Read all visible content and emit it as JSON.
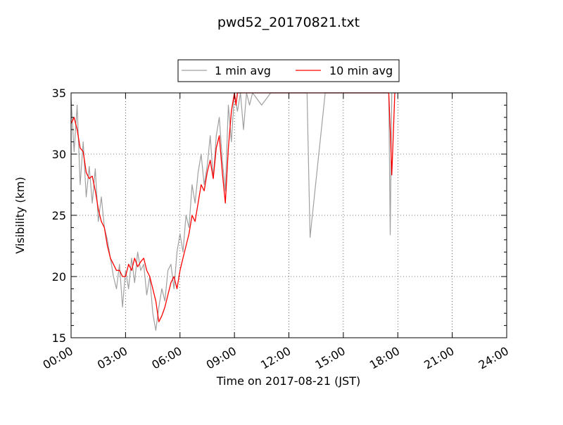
{
  "chart_data": {
    "type": "line",
    "title": "pwd52_20170821.txt",
    "xlabel": "Time on 2017-08-21 (JST)",
    "ylabel": "Visibility (km)",
    "xlim": [
      "00:00",
      "24:00"
    ],
    "ylim": [
      15,
      35
    ],
    "x_ticks": [
      "00:00",
      "03:00",
      "06:00",
      "09:00",
      "12:00",
      "15:00",
      "18:00",
      "21:00",
      "24:00"
    ],
    "y_ticks": [
      15,
      20,
      25,
      30,
      35
    ],
    "grid": true,
    "legend_position": "top-center",
    "series": [
      {
        "name": "1 min avg",
        "color": "#a0a0a0",
        "x": [
          "00:00",
          "00:10",
          "00:20",
          "00:30",
          "00:40",
          "00:50",
          "01:00",
          "01:10",
          "01:20",
          "01:30",
          "01:40",
          "01:50",
          "02:00",
          "02:10",
          "02:20",
          "02:30",
          "02:40",
          "02:50",
          "03:00",
          "03:10",
          "03:20",
          "03:30",
          "03:40",
          "03:50",
          "04:00",
          "04:10",
          "04:20",
          "04:30",
          "04:40",
          "04:50",
          "05:00",
          "05:10",
          "05:20",
          "05:30",
          "05:40",
          "05:50",
          "06:00",
          "06:10",
          "06:20",
          "06:30",
          "06:40",
          "06:50",
          "07:00",
          "07:10",
          "07:20",
          "07:30",
          "07:40",
          "07:50",
          "08:00",
          "08:10",
          "08:20",
          "08:30",
          "08:40",
          "08:50",
          "09:00",
          "09:10",
          "09:20",
          "09:30",
          "09:40",
          "09:50",
          "10:00",
          "10:30",
          "11:00",
          "11:30",
          "12:00",
          "13:00",
          "13:10",
          "14:00",
          "15:00",
          "16:00",
          "17:00",
          "17:30",
          "17:35",
          "17:40",
          "17:50",
          "18:00",
          "21:00",
          "24:00"
        ],
        "values": [
          34.5,
          30.2,
          34.0,
          27.5,
          31.0,
          26.5,
          29.0,
          26.0,
          28.8,
          24.5,
          26.5,
          24.0,
          23.0,
          21.5,
          20.0,
          19.0,
          21.0,
          17.5,
          20.5,
          19.0,
          21.5,
          19.5,
          22.0,
          20.5,
          21.0,
          18.5,
          20.0,
          17.0,
          15.6,
          17.5,
          19.0,
          18.0,
          20.5,
          21.0,
          19.0,
          22.0,
          23.5,
          22.0,
          25.0,
          24.0,
          27.5,
          26.0,
          28.5,
          30.0,
          27.5,
          29.0,
          31.5,
          28.0,
          31.5,
          33.0,
          29.5,
          27.0,
          34.0,
          31.0,
          35,
          33.5,
          35,
          32.0,
          35,
          34.0,
          35,
          34.0,
          35,
          35,
          35,
          35,
          23.2,
          35,
          35,
          35,
          35,
          35,
          23.4,
          35,
          35,
          35,
          35,
          35
        ]
      },
      {
        "name": "10 min avg",
        "color": "#ff0000",
        "x": [
          "00:00",
          "00:10",
          "00:20",
          "00:30",
          "00:40",
          "00:50",
          "01:00",
          "01:10",
          "01:20",
          "01:30",
          "01:40",
          "01:50",
          "02:00",
          "02:10",
          "02:20",
          "02:30",
          "02:40",
          "02:50",
          "03:00",
          "03:10",
          "03:20",
          "03:30",
          "03:40",
          "03:50",
          "04:00",
          "04:10",
          "04:20",
          "04:30",
          "04:40",
          "04:50",
          "05:00",
          "05:10",
          "05:20",
          "05:30",
          "05:40",
          "05:50",
          "06:00",
          "06:10",
          "06:20",
          "06:30",
          "06:40",
          "06:50",
          "07:00",
          "07:10",
          "07:20",
          "07:30",
          "07:40",
          "07:50",
          "08:00",
          "08:10",
          "08:20",
          "08:30",
          "08:40",
          "08:50",
          "09:00",
          "09:05",
          "09:10",
          "09:20",
          "17:30",
          "17:35",
          "17:40",
          "17:45",
          "17:50"
        ],
        "values": [
          32.5,
          33.0,
          32.0,
          30.5,
          30.2,
          28.5,
          28.0,
          28.2,
          27.0,
          25.5,
          24.5,
          24.0,
          22.5,
          21.5,
          21.0,
          20.5,
          20.5,
          20.0,
          20.0,
          21.0,
          20.5,
          21.5,
          20.8,
          21.2,
          21.5,
          20.5,
          20.0,
          19.0,
          18.0,
          16.3,
          16.8,
          17.5,
          18.5,
          19.5,
          20.0,
          19.0,
          20.5,
          21.5,
          22.5,
          23.5,
          25.0,
          24.5,
          26.0,
          27.5,
          27.0,
          28.5,
          29.5,
          28.0,
          30.5,
          31.5,
          28.5,
          26.0,
          30.5,
          33.5,
          35,
          34.0,
          35,
          35,
          35,
          32.0,
          28.3,
          31.5,
          35
        ]
      }
    ]
  }
}
